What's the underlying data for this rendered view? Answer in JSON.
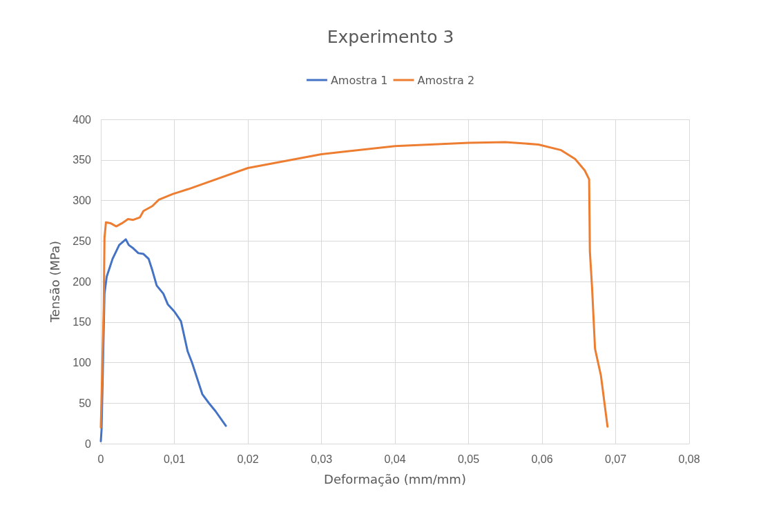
{
  "chart_data": {
    "type": "line",
    "title": "Experimento 3",
    "xlabel": "Deformação (mm/mm)",
    "ylabel": "Tensão (MPa)",
    "xlim": [
      0,
      0.08
    ],
    "xticks": [
      {
        "value": 0,
        "label": "0"
      },
      {
        "value": 0.01,
        "label": "0,01"
      },
      {
        "value": 0.02,
        "label": "0,02"
      },
      {
        "value": 0.03,
        "label": "0,03"
      },
      {
        "value": 0.04,
        "label": "0,04"
      },
      {
        "value": 0.05,
        "label": "0,05"
      },
      {
        "value": 0.06,
        "label": "0,06"
      },
      {
        "value": 0.07,
        "label": "0,07"
      },
      {
        "value": 0.08,
        "label": "0,08"
      }
    ],
    "ylim": [
      0,
      400
    ],
    "yticks": [
      0,
      50,
      100,
      150,
      200,
      250,
      300,
      350,
      400
    ],
    "grid": true,
    "legend": "top",
    "marker": "none",
    "line_style": "solid",
    "series": [
      {
        "name": "Amostra 1",
        "color": "#4472c4",
        "x": [
          0,
          0.0001,
          0.0005,
          0.0008,
          0.0016,
          0.0025,
          0.0034,
          0.0038,
          0.0044,
          0.0051,
          0.0058,
          0.0065,
          0.007,
          0.0076,
          0.0085,
          0.0091,
          0.01,
          0.0109,
          0.0118,
          0.0124,
          0.0138,
          0.0147,
          0.0156,
          0.017
        ],
        "values": [
          3,
          17,
          185,
          206,
          228,
          245,
          252,
          245,
          241,
          235,
          234,
          228,
          214,
          195,
          185,
          172,
          163,
          151,
          114,
          100,
          61,
          50,
          40,
          22
        ]
      },
      {
        "name": "Amostra 2",
        "color": "#ed7d31",
        "x": [
          0,
          0.0004,
          0.0005,
          0.0007,
          0.0013,
          0.0021,
          0.0029,
          0.0037,
          0.0044,
          0.0053,
          0.0058,
          0.007,
          0.0079,
          0.0098,
          0.0119,
          0.02,
          0.03,
          0.04,
          0.05,
          0.055,
          0.0595,
          0.0626,
          0.0645,
          0.0658,
          0.0664,
          0.0665,
          0.0668,
          0.0672,
          0.068,
          0.0689
        ],
        "values": [
          20,
          170,
          254,
          273,
          272,
          268,
          272,
          277,
          276,
          279,
          287,
          293,
          301,
          308,
          314,
          340,
          357,
          367,
          371,
          372,
          369,
          362,
          351,
          337,
          326,
          237,
          192,
          117,
          84,
          21
        ]
      }
    ]
  }
}
